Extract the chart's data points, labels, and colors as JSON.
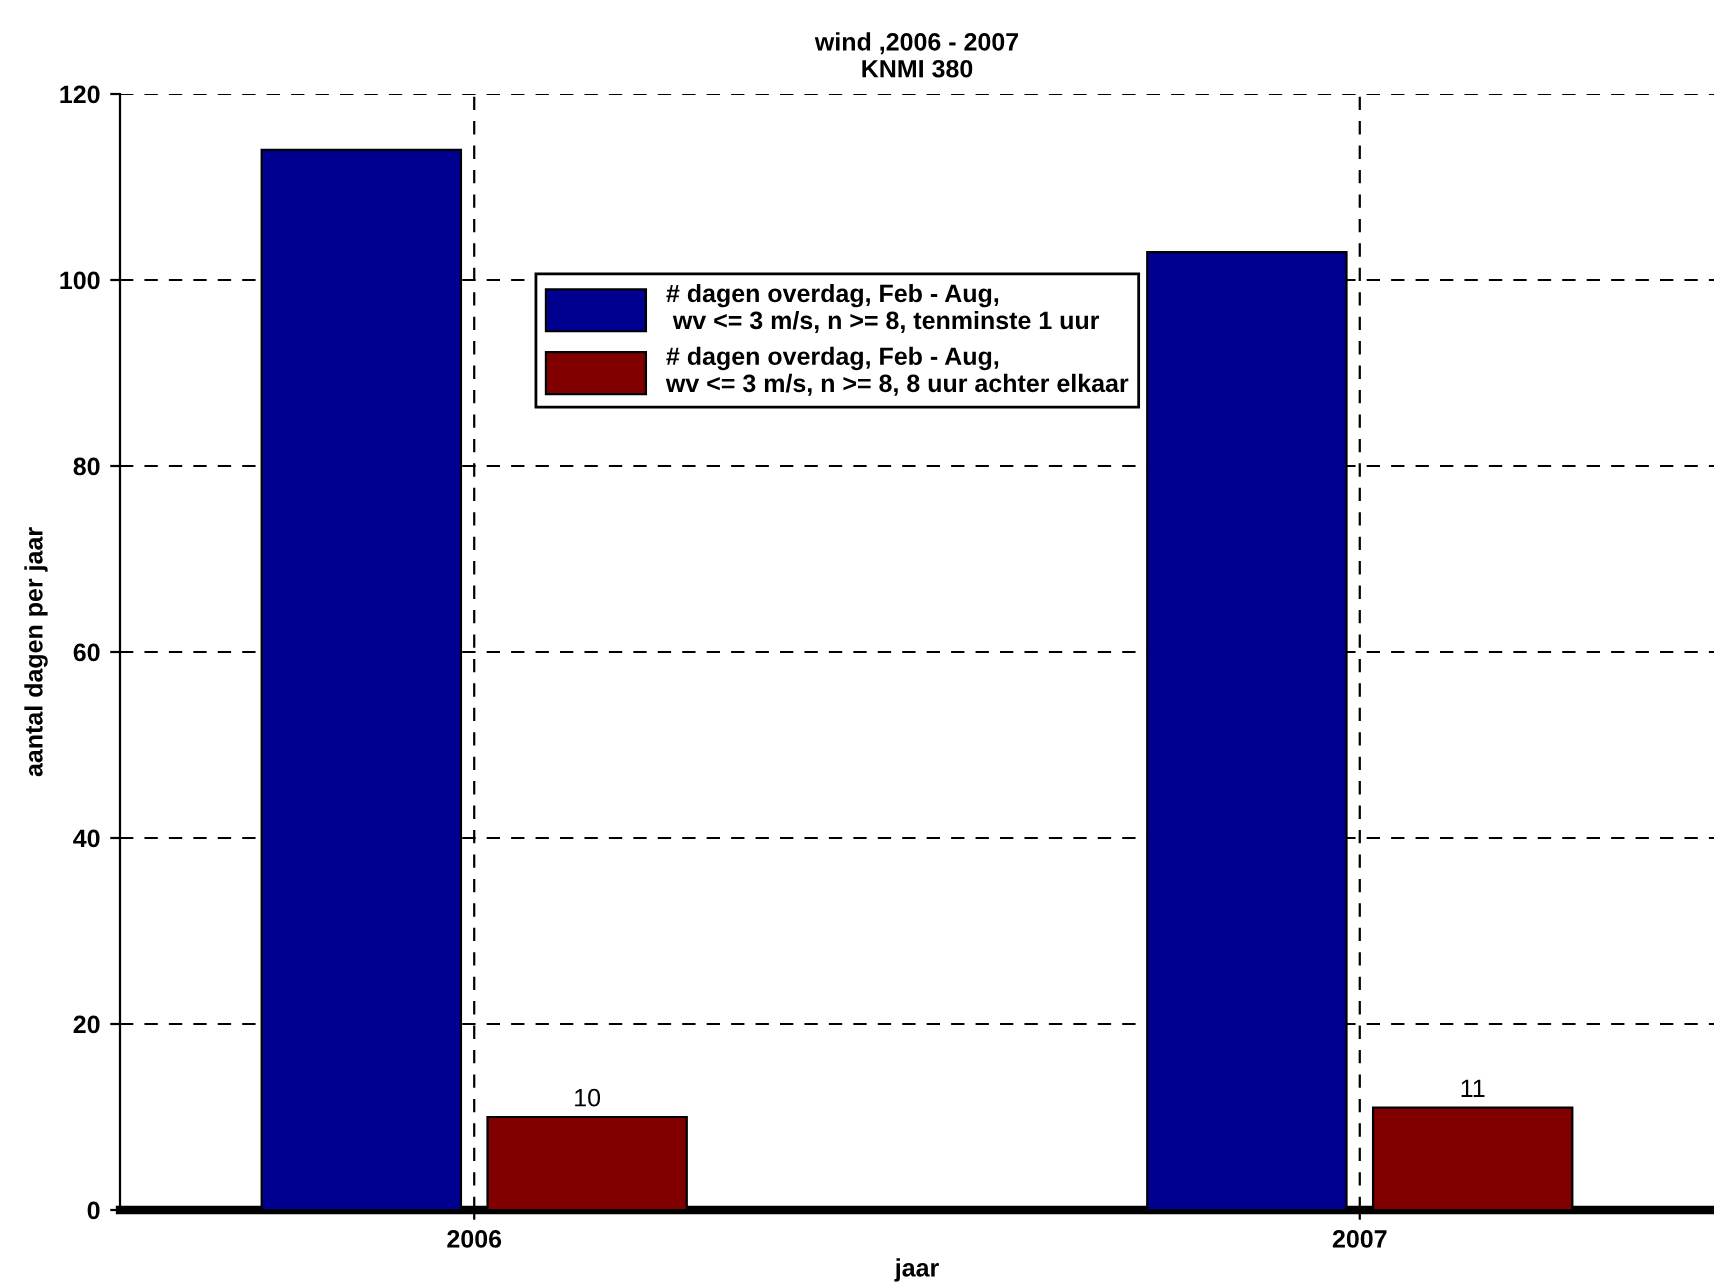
{
  "chart_data": {
    "type": "bar",
    "title": "wind ,2006 - 2007\nKNMI 380",
    "xlabel": "jaar",
    "ylabel": "aantal dagen per jaar",
    "x": [
      2006,
      2007
    ],
    "xlim": [
      2005.6,
      2007.4
    ],
    "xticks": [
      2006,
      2007
    ],
    "ylim": [
      0,
      120
    ],
    "yticks": [
      0,
      20,
      40,
      60,
      80,
      100,
      120
    ],
    "series": [
      {
        "name": "# dagen overdag, Feb - Aug,\n wv <= 3 m/s, n >= 8, tenminste 1 uur",
        "color": "#000090",
        "values": [
          114,
          103
        ]
      },
      {
        "name": "# dagen overdag, Feb - Aug,\nwv <= 3 m/s, n >= 8, 8 uur achter elkaar",
        "color": "#800000",
        "values": [
          10,
          11
        ],
        "value_labels": [
          "10",
          "11"
        ]
      }
    ],
    "grid": true,
    "legend": "top"
  }
}
